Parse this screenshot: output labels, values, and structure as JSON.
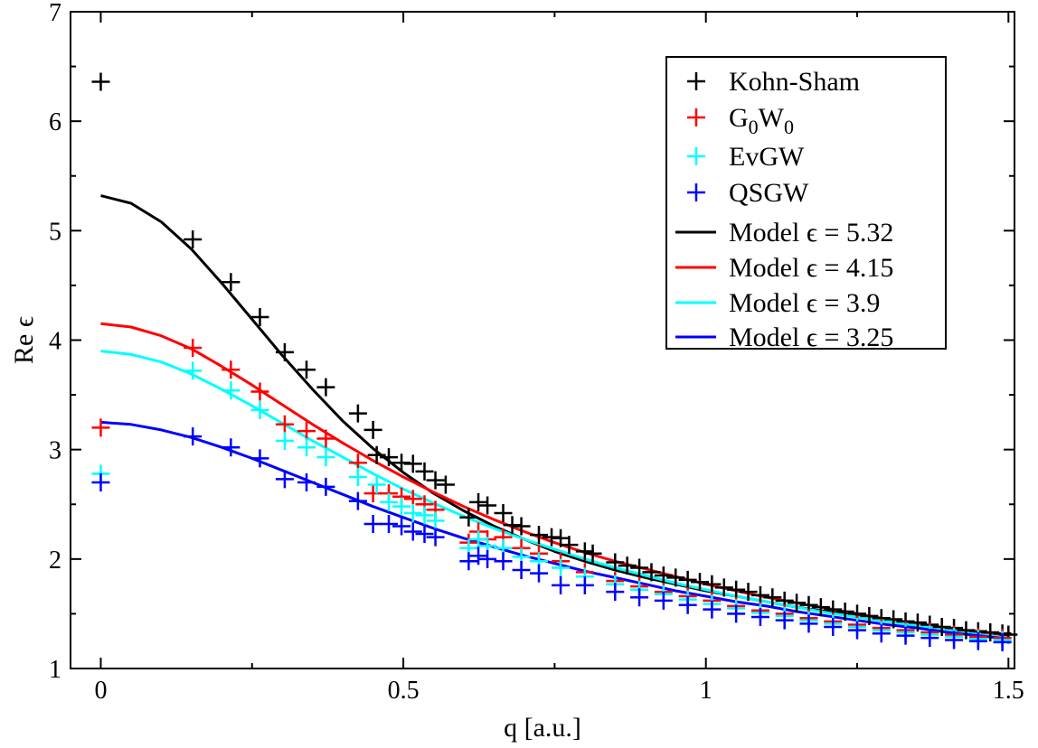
{
  "chart_data": {
    "type": "scatter",
    "title": "",
    "xlabel": "q [a.u.]",
    "ylabel": "Re ϵ",
    "xlim": [
      -0.05,
      1.51
    ],
    "ylim": [
      1,
      7
    ],
    "x_ticks": [
      "0",
      "0.5",
      "1",
      "1.5"
    ],
    "x_tick_values": [
      0,
      0.5,
      1,
      1.5
    ],
    "y_ticks": [
      "1",
      "2",
      "3",
      "4",
      "5",
      "6",
      "7"
    ],
    "y_tick_values": [
      1,
      2,
      3,
      4,
      5,
      6,
      7
    ],
    "grid": false,
    "legend_position": "top-right",
    "series": [
      {
        "name": "Kohn-Sham",
        "name_base": "Kohn-Sham",
        "name_sub": "",
        "kind": "points",
        "color": "#000000",
        "x": [
          0,
          0.152,
          0.215,
          0.263,
          0.304,
          0.34,
          0.372,
          0.425,
          0.45,
          0.456,
          0.476,
          0.497,
          0.516,
          0.535,
          0.553,
          0.57,
          0.608,
          0.624,
          0.639,
          0.665,
          0.68,
          0.695,
          0.724,
          0.745,
          0.76,
          0.774,
          0.8,
          0.813,
          0.85,
          0.87,
          0.89,
          0.91,
          0.93,
          0.95,
          0.97,
          0.99,
          1.01,
          1.03,
          1.05,
          1.07,
          1.09,
          1.11,
          1.13,
          1.15,
          1.17,
          1.19,
          1.21,
          1.23,
          1.25,
          1.27,
          1.29,
          1.31,
          1.33,
          1.35,
          1.37,
          1.39,
          1.41,
          1.43,
          1.45,
          1.47,
          1.49,
          1.5
        ],
        "y": [
          6.36,
          4.92,
          4.53,
          4.21,
          3.89,
          3.73,
          3.57,
          3.33,
          3.18,
          2.95,
          2.93,
          2.88,
          2.87,
          2.8,
          2.72,
          2.68,
          2.38,
          2.52,
          2.49,
          2.42,
          2.31,
          2.3,
          2.22,
          2.2,
          2.19,
          2.13,
          2.07,
          2.05,
          1.97,
          1.94,
          1.92,
          1.88,
          1.85,
          1.83,
          1.81,
          1.79,
          1.77,
          1.74,
          1.72,
          1.7,
          1.67,
          1.65,
          1.62,
          1.6,
          1.58,
          1.56,
          1.54,
          1.52,
          1.5,
          1.48,
          1.46,
          1.45,
          1.43,
          1.42,
          1.4,
          1.38,
          1.37,
          1.35,
          1.34,
          1.33,
          1.32,
          1.31
        ]
      },
      {
        "name": "G0W0",
        "name_base": "G",
        "name_sub": "0",
        "kind": "points",
        "color": "#ff0000",
        "x": [
          0,
          0.152,
          0.215,
          0.263,
          0.304,
          0.34,
          0.372,
          0.425,
          0.45,
          0.476,
          0.497,
          0.516,
          0.535,
          0.553,
          0.608,
          0.624,
          0.639,
          0.665,
          0.695,
          0.724,
          0.76,
          0.8,
          0.85,
          0.89,
          0.93,
          0.97,
          1.01,
          1.05,
          1.09,
          1.13,
          1.17,
          1.21,
          1.25,
          1.29,
          1.33,
          1.37,
          1.41,
          1.45,
          1.49
        ],
        "y": [
          3.2,
          3.93,
          3.73,
          3.53,
          3.23,
          3.17,
          3.1,
          2.88,
          2.6,
          2.6,
          2.57,
          2.55,
          2.5,
          2.45,
          2.15,
          2.25,
          2.18,
          2.2,
          2.1,
          2.05,
          1.98,
          1.88,
          1.8,
          1.75,
          1.7,
          1.66,
          1.62,
          1.57,
          1.53,
          1.5,
          1.46,
          1.43,
          1.4,
          1.37,
          1.35,
          1.33,
          1.31,
          1.29,
          1.28
        ]
      },
      {
        "name": "EvGW",
        "name_base": "EvGW",
        "name_sub": "",
        "kind": "points",
        "color": "#00ffff",
        "x": [
          0,
          0.152,
          0.215,
          0.263,
          0.304,
          0.34,
          0.372,
          0.425,
          0.456,
          0.476,
          0.497,
          0.516,
          0.535,
          0.553,
          0.608,
          0.624,
          0.639,
          0.665,
          0.695,
          0.724,
          0.76,
          0.8,
          0.85,
          0.89,
          0.93,
          0.97,
          1.01,
          1.05,
          1.09,
          1.13,
          1.17,
          1.21,
          1.25,
          1.29,
          1.33,
          1.37,
          1.41,
          1.45,
          1.49
        ],
        "y": [
          2.78,
          3.72,
          3.54,
          3.36,
          3.08,
          3.02,
          2.93,
          2.75,
          2.68,
          2.52,
          2.48,
          2.42,
          2.4,
          2.35,
          2.1,
          2.18,
          2.12,
          2.1,
          2.02,
          1.98,
          1.92,
          1.84,
          1.77,
          1.72,
          1.68,
          1.63,
          1.59,
          1.55,
          1.51,
          1.48,
          1.44,
          1.41,
          1.38,
          1.35,
          1.33,
          1.31,
          1.29,
          1.27,
          1.26
        ]
      },
      {
        "name": "QSGW",
        "name_base": "QSGW",
        "name_sub": "",
        "kind": "points",
        "color": "#0000ff",
        "x": [
          0,
          0.152,
          0.215,
          0.263,
          0.304,
          0.34,
          0.372,
          0.425,
          0.45,
          0.476,
          0.497,
          0.516,
          0.535,
          0.553,
          0.608,
          0.624,
          0.639,
          0.665,
          0.695,
          0.724,
          0.76,
          0.8,
          0.85,
          0.89,
          0.93,
          0.97,
          1.01,
          1.05,
          1.09,
          1.13,
          1.17,
          1.21,
          1.25,
          1.29,
          1.33,
          1.37,
          1.41,
          1.45,
          1.49
        ],
        "y": [
          2.7,
          3.12,
          3.02,
          2.92,
          2.73,
          2.7,
          2.66,
          2.53,
          2.32,
          2.32,
          2.3,
          2.25,
          2.23,
          2.2,
          1.98,
          2.03,
          2.0,
          1.98,
          1.9,
          1.87,
          1.76,
          1.76,
          1.7,
          1.65,
          1.62,
          1.58,
          1.54,
          1.5,
          1.47,
          1.44,
          1.41,
          1.38,
          1.35,
          1.32,
          1.3,
          1.28,
          1.26,
          1.25,
          1.24
        ]
      },
      {
        "name": "Model ϵ = 5.32",
        "name_base": "Model ϵ = 5.32",
        "name_sub": "",
        "kind": "line",
        "color": "#000000",
        "x": [
          0,
          0.05,
          0.1,
          0.15,
          0.2,
          0.25,
          0.3,
          0.35,
          0.4,
          0.45,
          0.5,
          0.55,
          0.6,
          0.65,
          0.7,
          0.75,
          0.8,
          0.85,
          0.9,
          0.95,
          1.0,
          1.05,
          1.1,
          1.15,
          1.2,
          1.25,
          1.3,
          1.35,
          1.4,
          1.45,
          1.5
        ],
        "y": [
          5.32,
          5.25,
          5.08,
          4.83,
          4.52,
          4.19,
          3.86,
          3.55,
          3.26,
          3.01,
          2.79,
          2.6,
          2.44,
          2.3,
          2.18,
          2.07,
          1.98,
          1.9,
          1.83,
          1.77,
          1.71,
          1.66,
          1.61,
          1.56,
          1.52,
          1.48,
          1.44,
          1.4,
          1.36,
          1.32,
          1.29
        ]
      },
      {
        "name": "Model ϵ = 4.15",
        "name_base": "Model ϵ = 4.15",
        "name_sub": "",
        "kind": "line",
        "color": "#ff0000",
        "x": [
          0,
          0.05,
          0.1,
          0.15,
          0.2,
          0.25,
          0.3,
          0.35,
          0.4,
          0.45,
          0.5,
          0.55,
          0.6,
          0.65,
          0.7,
          0.75,
          0.8,
          0.85,
          0.9,
          0.95,
          1.0,
          1.05,
          1.1,
          1.15,
          1.2,
          1.25,
          1.3,
          1.35,
          1.4,
          1.45,
          1.5
        ],
        "y": [
          4.15,
          4.12,
          4.04,
          3.92,
          3.76,
          3.59,
          3.41,
          3.23,
          3.06,
          2.9,
          2.75,
          2.61,
          2.48,
          2.36,
          2.25,
          2.15,
          2.06,
          1.98,
          1.91,
          1.84,
          1.77,
          1.71,
          1.65,
          1.6,
          1.55,
          1.5,
          1.45,
          1.41,
          1.37,
          1.33,
          1.29
        ]
      },
      {
        "name": "Model ϵ = 3.9",
        "name_base": "Model ϵ = 3.9",
        "name_sub": "",
        "kind": "line",
        "color": "#00ffff",
        "x": [
          0,
          0.05,
          0.1,
          0.15,
          0.2,
          0.25,
          0.3,
          0.35,
          0.4,
          0.45,
          0.5,
          0.55,
          0.6,
          0.65,
          0.7,
          0.75,
          0.8,
          0.85,
          0.9,
          0.95,
          1.0,
          1.05,
          1.1,
          1.15,
          1.2,
          1.25,
          1.3,
          1.35,
          1.4,
          1.45,
          1.5
        ],
        "y": [
          3.9,
          3.87,
          3.8,
          3.69,
          3.55,
          3.4,
          3.24,
          3.08,
          2.93,
          2.78,
          2.64,
          2.51,
          2.39,
          2.28,
          2.18,
          2.09,
          2.0,
          1.92,
          1.85,
          1.78,
          1.72,
          1.66,
          1.61,
          1.56,
          1.51,
          1.47,
          1.43,
          1.39,
          1.35,
          1.31,
          1.28
        ]
      },
      {
        "name": "Model ϵ = 3.25",
        "name_base": "Model ϵ = 3.25",
        "name_sub": "",
        "kind": "line",
        "color": "#0000ff",
        "x": [
          0,
          0.05,
          0.1,
          0.15,
          0.2,
          0.25,
          0.3,
          0.35,
          0.4,
          0.45,
          0.5,
          0.55,
          0.6,
          0.65,
          0.7,
          0.75,
          0.8,
          0.85,
          0.9,
          0.95,
          1.0,
          1.05,
          1.1,
          1.15,
          1.2,
          1.25,
          1.3,
          1.35,
          1.4,
          1.45,
          1.5
        ],
        "y": [
          3.25,
          3.23,
          3.18,
          3.11,
          3.02,
          2.92,
          2.81,
          2.7,
          2.59,
          2.48,
          2.38,
          2.28,
          2.19,
          2.11,
          2.03,
          1.96,
          1.89,
          1.83,
          1.77,
          1.71,
          1.66,
          1.61,
          1.57,
          1.52,
          1.48,
          1.44,
          1.4,
          1.37,
          1.33,
          1.3,
          1.27
        ]
      }
    ]
  }
}
